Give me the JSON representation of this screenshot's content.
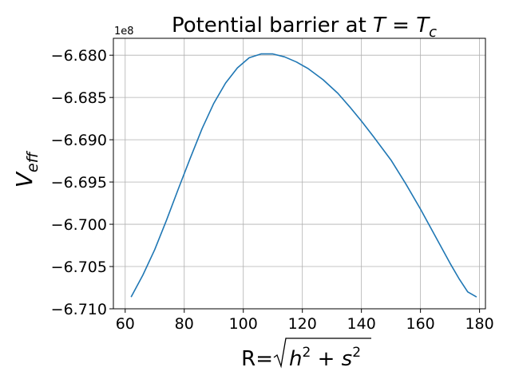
{
  "chart_data": {
    "type": "line",
    "title": "Potential barrier at ",
    "title_math": {
      "lhs": "T",
      "eq": " = ",
      "rhs": "T",
      "rhs_sub": "c"
    },
    "xlabel": {
      "prefix": "R=",
      "h": "h",
      "plus": " + ",
      "s": "s",
      "exp": "2"
    },
    "ylabel": {
      "main": "V",
      "sub": "eff"
    },
    "y_offset_label": "1e8",
    "x_ticks": [
      60,
      80,
      100,
      120,
      140,
      160,
      180
    ],
    "x_tick_labels": [
      "60",
      "80",
      "100",
      "120",
      "140",
      "160",
      "180"
    ],
    "y_ticks": [
      -6.68,
      -6.685,
      -6.69,
      -6.695,
      -6.7,
      -6.705,
      -6.71
    ],
    "y_tick_labels": [
      "−6.680",
      "−6.685",
      "−6.690",
      "−6.695",
      "−6.700",
      "−6.705",
      "−6.710"
    ],
    "xlim": [
      56,
      182
    ],
    "ylim": [
      -6.71,
      -6.678
    ],
    "grid": true,
    "series": [
      {
        "color": "#1f77b4",
        "x": [
          62,
          66,
          70,
          74,
          78,
          82,
          86,
          90,
          94,
          98,
          102,
          106,
          110,
          114,
          118,
          122,
          127,
          132,
          136,
          140,
          144,
          150,
          155,
          160,
          165,
          170,
          173,
          176,
          179
        ],
        "y": [
          -6.7086,
          -6.706,
          -6.703,
          -6.6995,
          -6.6958,
          -6.6922,
          -6.6887,
          -6.6857,
          -6.6833,
          -6.6815,
          -6.6803,
          -6.67985,
          -6.67985,
          -6.6802,
          -6.6808,
          -6.6816,
          -6.6829,
          -6.6845,
          -6.6861,
          -6.6878,
          -6.6896,
          -6.6924,
          -6.6952,
          -6.6982,
          -6.7014,
          -6.7046,
          -6.7064,
          -6.708,
          -6.7086
        ]
      }
    ]
  }
}
